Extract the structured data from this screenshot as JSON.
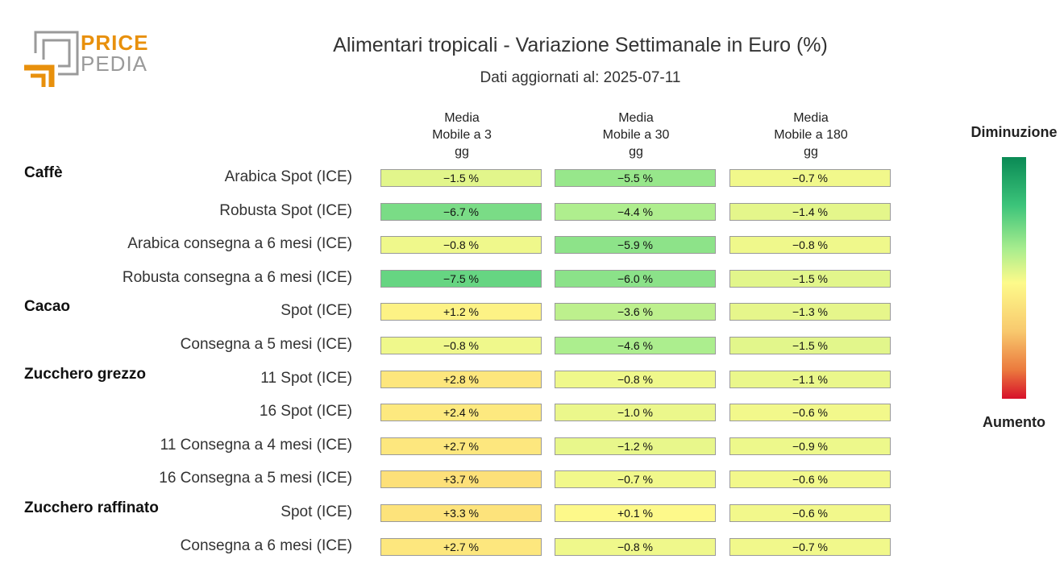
{
  "logo": {
    "line1": "PRICE",
    "line2": "PEDIA",
    "colors": {
      "orange": "#e8900c",
      "gray": "#9a9a9a"
    }
  },
  "header": {
    "title": "Alimentari tropicali - Variazione Settimanale in Euro (%)",
    "subtitle": "Dati aggiornati al: 2025-07-11"
  },
  "legend": {
    "top_label": "Diminuzione",
    "bottom_label": "Aumento"
  },
  "chart_data": {
    "type": "heatmap",
    "columns": [
      "Media\nMobile a 3\ngg",
      "Media\nMobile a 30\ngg",
      "Media\nMobile a 180\ngg"
    ],
    "unit": "%",
    "groups": [
      {
        "name": "Caffè",
        "rows": [
          {
            "label": "Arabica Spot (ICE)",
            "values": [
              -1.5,
              -5.5,
              -0.7
            ]
          },
          {
            "label": "Robusta Spot (ICE)",
            "values": [
              -6.7,
              -4.4,
              -1.4
            ]
          },
          {
            "label": "Arabica consegna a 6 mesi (ICE)",
            "values": [
              -0.8,
              -5.9,
              -0.8
            ]
          },
          {
            "label": "Robusta consegna a 6 mesi (ICE)",
            "values": [
              -7.5,
              -6.0,
              -1.5
            ]
          }
        ]
      },
      {
        "name": "Cacao",
        "rows": [
          {
            "label": "Spot (ICE)",
            "values": [
              1.2,
              -3.6,
              -1.3
            ]
          },
          {
            "label": "Consegna a 5 mesi (ICE)",
            "values": [
              -0.8,
              -4.6,
              -1.5
            ]
          }
        ]
      },
      {
        "name": "Zucchero grezzo",
        "rows": [
          {
            "label": "11 Spot (ICE)",
            "values": [
              2.8,
              -0.8,
              -1.1
            ]
          },
          {
            "label": "16 Spot (ICE)",
            "values": [
              2.4,
              -1.0,
              -0.6
            ]
          },
          {
            "label": "11 Consegna a 4 mesi (ICE)",
            "values": [
              2.7,
              -1.2,
              -0.9
            ]
          },
          {
            "label": "16 Consegna a 5 mesi (ICE)",
            "values": [
              3.7,
              -0.7,
              -0.6
            ]
          }
        ]
      },
      {
        "name": "Zucchero raffinato",
        "rows": [
          {
            "label": "Spot (ICE)",
            "values": [
              3.3,
              0.1,
              -0.6
            ]
          },
          {
            "label": "Consegna a 6 mesi (ICE)",
            "values": [
              2.7,
              -0.8,
              -0.7
            ]
          }
        ]
      }
    ],
    "colors": {
      "decrease": "#0a8a55",
      "neutral": "#fdfa8a",
      "increase": "#d7102a"
    }
  }
}
